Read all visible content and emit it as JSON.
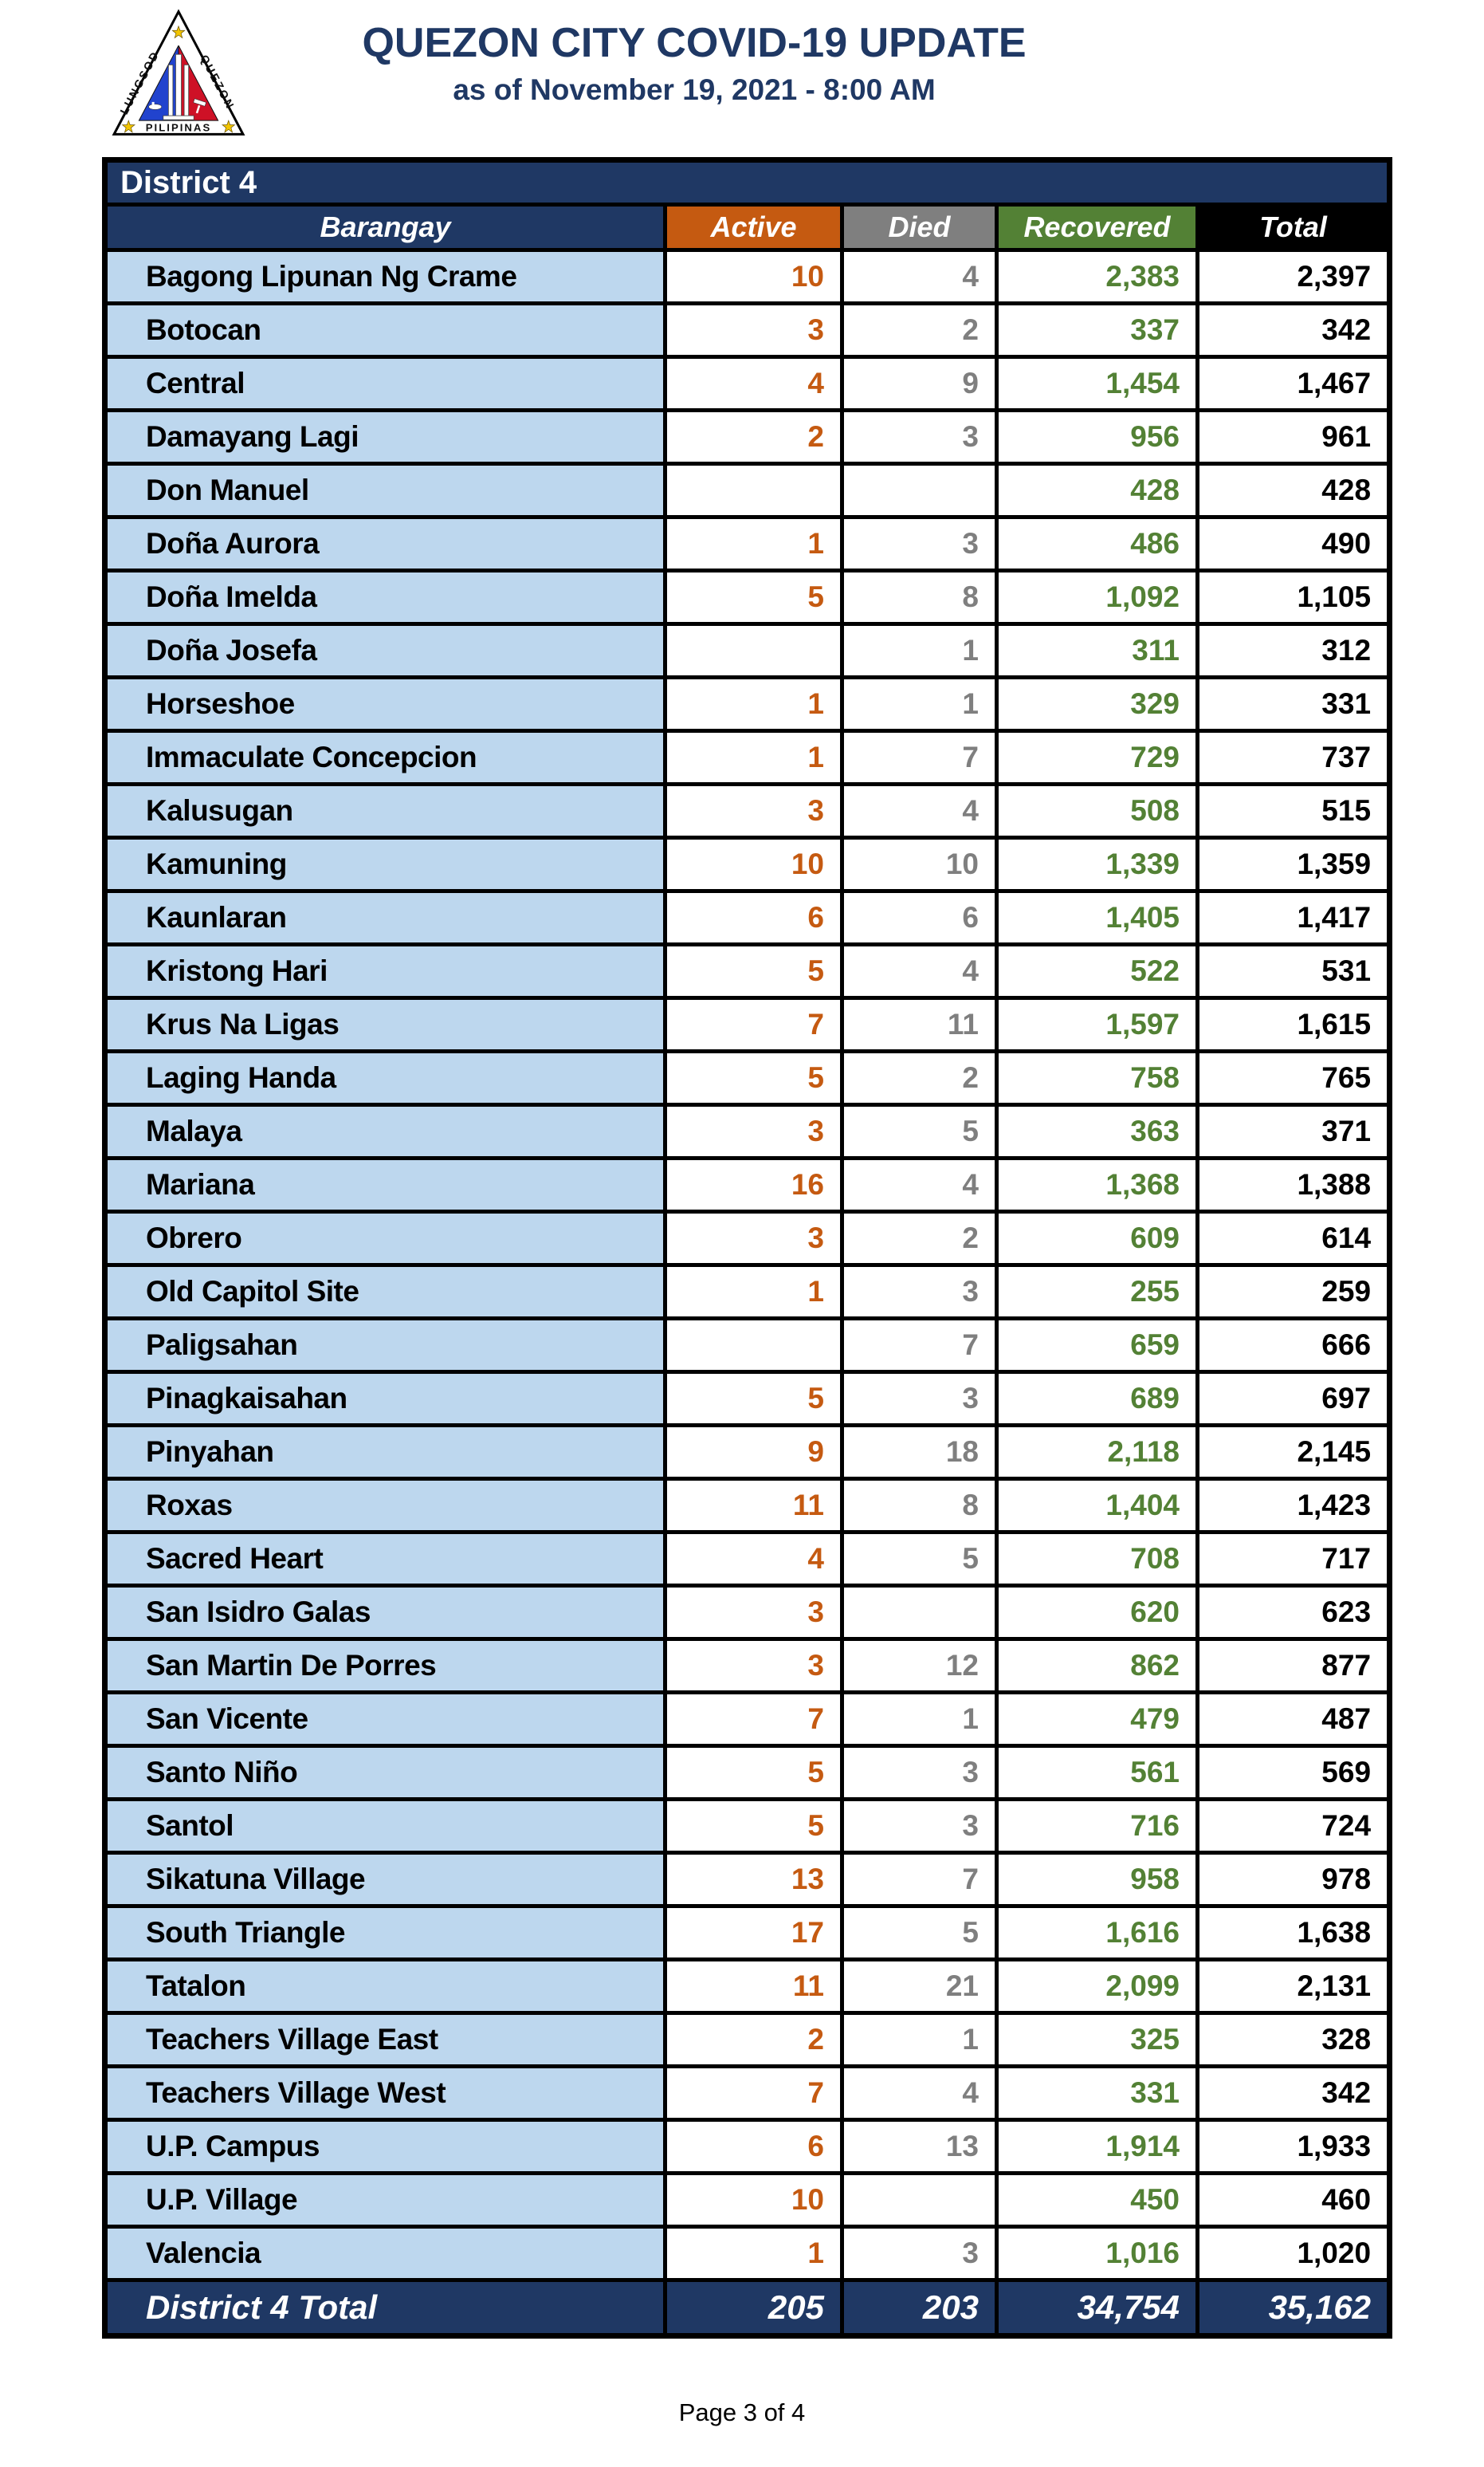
{
  "header": {
    "title": "QUEZON CITY COVID-19 UPDATE",
    "subtitle": "as of November 19, 2021 - 8:00 AM",
    "logo": {
      "side_text_left": "LUNGSOD",
      "side_text_right": "QUEZON",
      "bottom_text": "PILIPINAS"
    }
  },
  "table": {
    "district_label": "District 4",
    "columns": [
      "Barangay",
      "Active",
      "Died",
      "Recovered",
      "Total"
    ],
    "rows": [
      {
        "name": "Bagong Lipunan Ng Crame",
        "active": "10",
        "died": "4",
        "recovered": "2,383",
        "total": "2,397"
      },
      {
        "name": "Botocan",
        "active": "3",
        "died": "2",
        "recovered": "337",
        "total": "342"
      },
      {
        "name": "Central",
        "active": "4",
        "died": "9",
        "recovered": "1,454",
        "total": "1,467"
      },
      {
        "name": "Damayang Lagi",
        "active": "2",
        "died": "3",
        "recovered": "956",
        "total": "961"
      },
      {
        "name": "Don Manuel",
        "active": "",
        "died": "",
        "recovered": "428",
        "total": "428"
      },
      {
        "name": "Doña Aurora",
        "active": "1",
        "died": "3",
        "recovered": "486",
        "total": "490"
      },
      {
        "name": "Doña Imelda",
        "active": "5",
        "died": "8",
        "recovered": "1,092",
        "total": "1,105"
      },
      {
        "name": "Doña Josefa",
        "active": "",
        "died": "1",
        "recovered": "311",
        "total": "312"
      },
      {
        "name": "Horseshoe",
        "active": "1",
        "died": "1",
        "recovered": "329",
        "total": "331"
      },
      {
        "name": "Immaculate Concepcion",
        "active": "1",
        "died": "7",
        "recovered": "729",
        "total": "737"
      },
      {
        "name": "Kalusugan",
        "active": "3",
        "died": "4",
        "recovered": "508",
        "total": "515"
      },
      {
        "name": "Kamuning",
        "active": "10",
        "died": "10",
        "recovered": "1,339",
        "total": "1,359"
      },
      {
        "name": "Kaunlaran",
        "active": "6",
        "died": "6",
        "recovered": "1,405",
        "total": "1,417"
      },
      {
        "name": "Kristong Hari",
        "active": "5",
        "died": "4",
        "recovered": "522",
        "total": "531"
      },
      {
        "name": "Krus Na Ligas",
        "active": "7",
        "died": "11",
        "recovered": "1,597",
        "total": "1,615"
      },
      {
        "name": "Laging Handa",
        "active": "5",
        "died": "2",
        "recovered": "758",
        "total": "765"
      },
      {
        "name": "Malaya",
        "active": "3",
        "died": "5",
        "recovered": "363",
        "total": "371"
      },
      {
        "name": "Mariana",
        "active": "16",
        "died": "4",
        "recovered": "1,368",
        "total": "1,388"
      },
      {
        "name": "Obrero",
        "active": "3",
        "died": "2",
        "recovered": "609",
        "total": "614"
      },
      {
        "name": "Old Capitol Site",
        "active": "1",
        "died": "3",
        "recovered": "255",
        "total": "259"
      },
      {
        "name": "Paligsahan",
        "active": "",
        "died": "7",
        "recovered": "659",
        "total": "666"
      },
      {
        "name": "Pinagkaisahan",
        "active": "5",
        "died": "3",
        "recovered": "689",
        "total": "697"
      },
      {
        "name": "Pinyahan",
        "active": "9",
        "died": "18",
        "recovered": "2,118",
        "total": "2,145"
      },
      {
        "name": "Roxas",
        "active": "11",
        "died": "8",
        "recovered": "1,404",
        "total": "1,423"
      },
      {
        "name": "Sacred Heart",
        "active": "4",
        "died": "5",
        "recovered": "708",
        "total": "717"
      },
      {
        "name": "San Isidro Galas",
        "active": "3",
        "died": "",
        "recovered": "620",
        "total": "623"
      },
      {
        "name": "San Martin De Porres",
        "active": "3",
        "died": "12",
        "recovered": "862",
        "total": "877"
      },
      {
        "name": "San Vicente",
        "active": "7",
        "died": "1",
        "recovered": "479",
        "total": "487"
      },
      {
        "name": "Santo Niño",
        "active": "5",
        "died": "3",
        "recovered": "561",
        "total": "569"
      },
      {
        "name": "Santol",
        "active": "5",
        "died": "3",
        "recovered": "716",
        "total": "724"
      },
      {
        "name": "Sikatuna Village",
        "active": "13",
        "died": "7",
        "recovered": "958",
        "total": "978"
      },
      {
        "name": "South Triangle",
        "active": "17",
        "died": "5",
        "recovered": "1,616",
        "total": "1,638"
      },
      {
        "name": "Tatalon",
        "active": "11",
        "died": "21",
        "recovered": "2,099",
        "total": "2,131"
      },
      {
        "name": "Teachers Village East",
        "active": "2",
        "died": "1",
        "recovered": "325",
        "total": "328"
      },
      {
        "name": "Teachers Village West",
        "active": "7",
        "died": "4",
        "recovered": "331",
        "total": "342"
      },
      {
        "name": "U.P. Campus",
        "active": "6",
        "died": "13",
        "recovered": "1,914",
        "total": "1,933"
      },
      {
        "name": "U.P. Village",
        "active": "10",
        "died": "",
        "recovered": "450",
        "total": "460"
      },
      {
        "name": "Valencia",
        "active": "1",
        "died": "3",
        "recovered": "1,016",
        "total": "1,020"
      }
    ],
    "total_row": {
      "label": "District 4 Total",
      "active": "205",
      "died": "203",
      "recovered": "34,754",
      "total": "35,162"
    }
  },
  "footer": {
    "page_label": "Page 3 of 4"
  },
  "colors": {
    "title_navy": "#1F3864",
    "header_navy": "#1F3864",
    "row_light_blue": "#BDD7EE",
    "active_orange": "#C55A11",
    "died_gray": "#7F7F7F",
    "recovered_green": "#538135",
    "total_black": "#000000",
    "logo_blue": "#2143CE",
    "logo_red": "#CE1126",
    "logo_star_gold": "#F2C500"
  }
}
